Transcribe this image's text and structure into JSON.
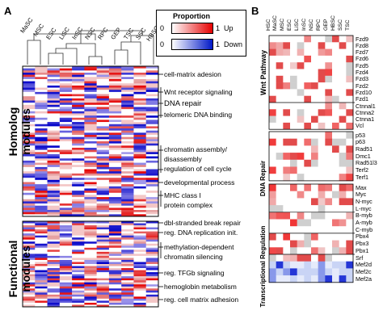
{
  "panels": {
    "a": "A",
    "b": "B"
  },
  "panel_a": {
    "columns": [
      "MaSC",
      "MSC",
      "ESC",
      "LiSC",
      "InSC",
      "NSC",
      "RPC",
      "GEP",
      "TSC",
      "SSC",
      "HBSC"
    ],
    "row_groups": [
      "Homolog modules",
      "Functional modules"
    ],
    "annotations": [
      "cell-matrix adesion",
      "Wnt receptor signaling",
      "DNA  repair",
      "telomeric DNA binding",
      "chromatin assembly/",
      "disassembly",
      "regulation of cell cycle",
      "developmental process",
      "MHC class I",
      "protein complex",
      "dbl-stranded break repair",
      "reg. DNA replication init.",
      "methylation-dependent",
      "chromatin silencing",
      "reg. TFGb signaling",
      "hemoglobin metabolism",
      "reg. cell matrix adhesion"
    ]
  },
  "legend": {
    "title": "Proportion",
    "up_min": "0",
    "up_max": "1",
    "up_label": "Up",
    "down_min": "0",
    "down_max": "1",
    "down_label": "Down",
    "up_color": "#e60000",
    "down_color": "#0018c8"
  },
  "panel_b": {
    "columns": [
      "HSC",
      "MaSC",
      "MSC",
      "ESC",
      "LiSC",
      "InSC",
      "NSC",
      "RPC",
      "GEP",
      "HBSC",
      "SSC",
      "TSC"
    ],
    "sections": [
      {
        "title": "Wnt Pathway",
        "genes": [
          "Fzd9",
          "Fzd8",
          "Fzd7",
          "Fzd6",
          "Fzd5",
          "Fzd4",
          "Fzd3",
          "Fzd2",
          "Fzd10",
          "Fzd1",
          "Ctnnal1",
          "Ctnna2",
          "Ctnna1",
          "Vcl"
        ]
      },
      {
        "title": "DNA Repair",
        "genes": [
          "p53",
          "p63",
          "Rad51",
          "Dmc1",
          "Rad51l3",
          "Terf2",
          "Terf1"
        ]
      },
      {
        "title": "Transcriptional Regulation",
        "genes": [
          "Max",
          "Myc",
          "N-myc",
          "L-myc",
          "B-myb",
          "A-myb",
          "C-myb",
          "Pbx4",
          "Pbx3",
          "Pbx1",
          "Srf",
          "Mef2d",
          "Mef2c",
          "Mef2a"
        ]
      }
    ]
  }
}
